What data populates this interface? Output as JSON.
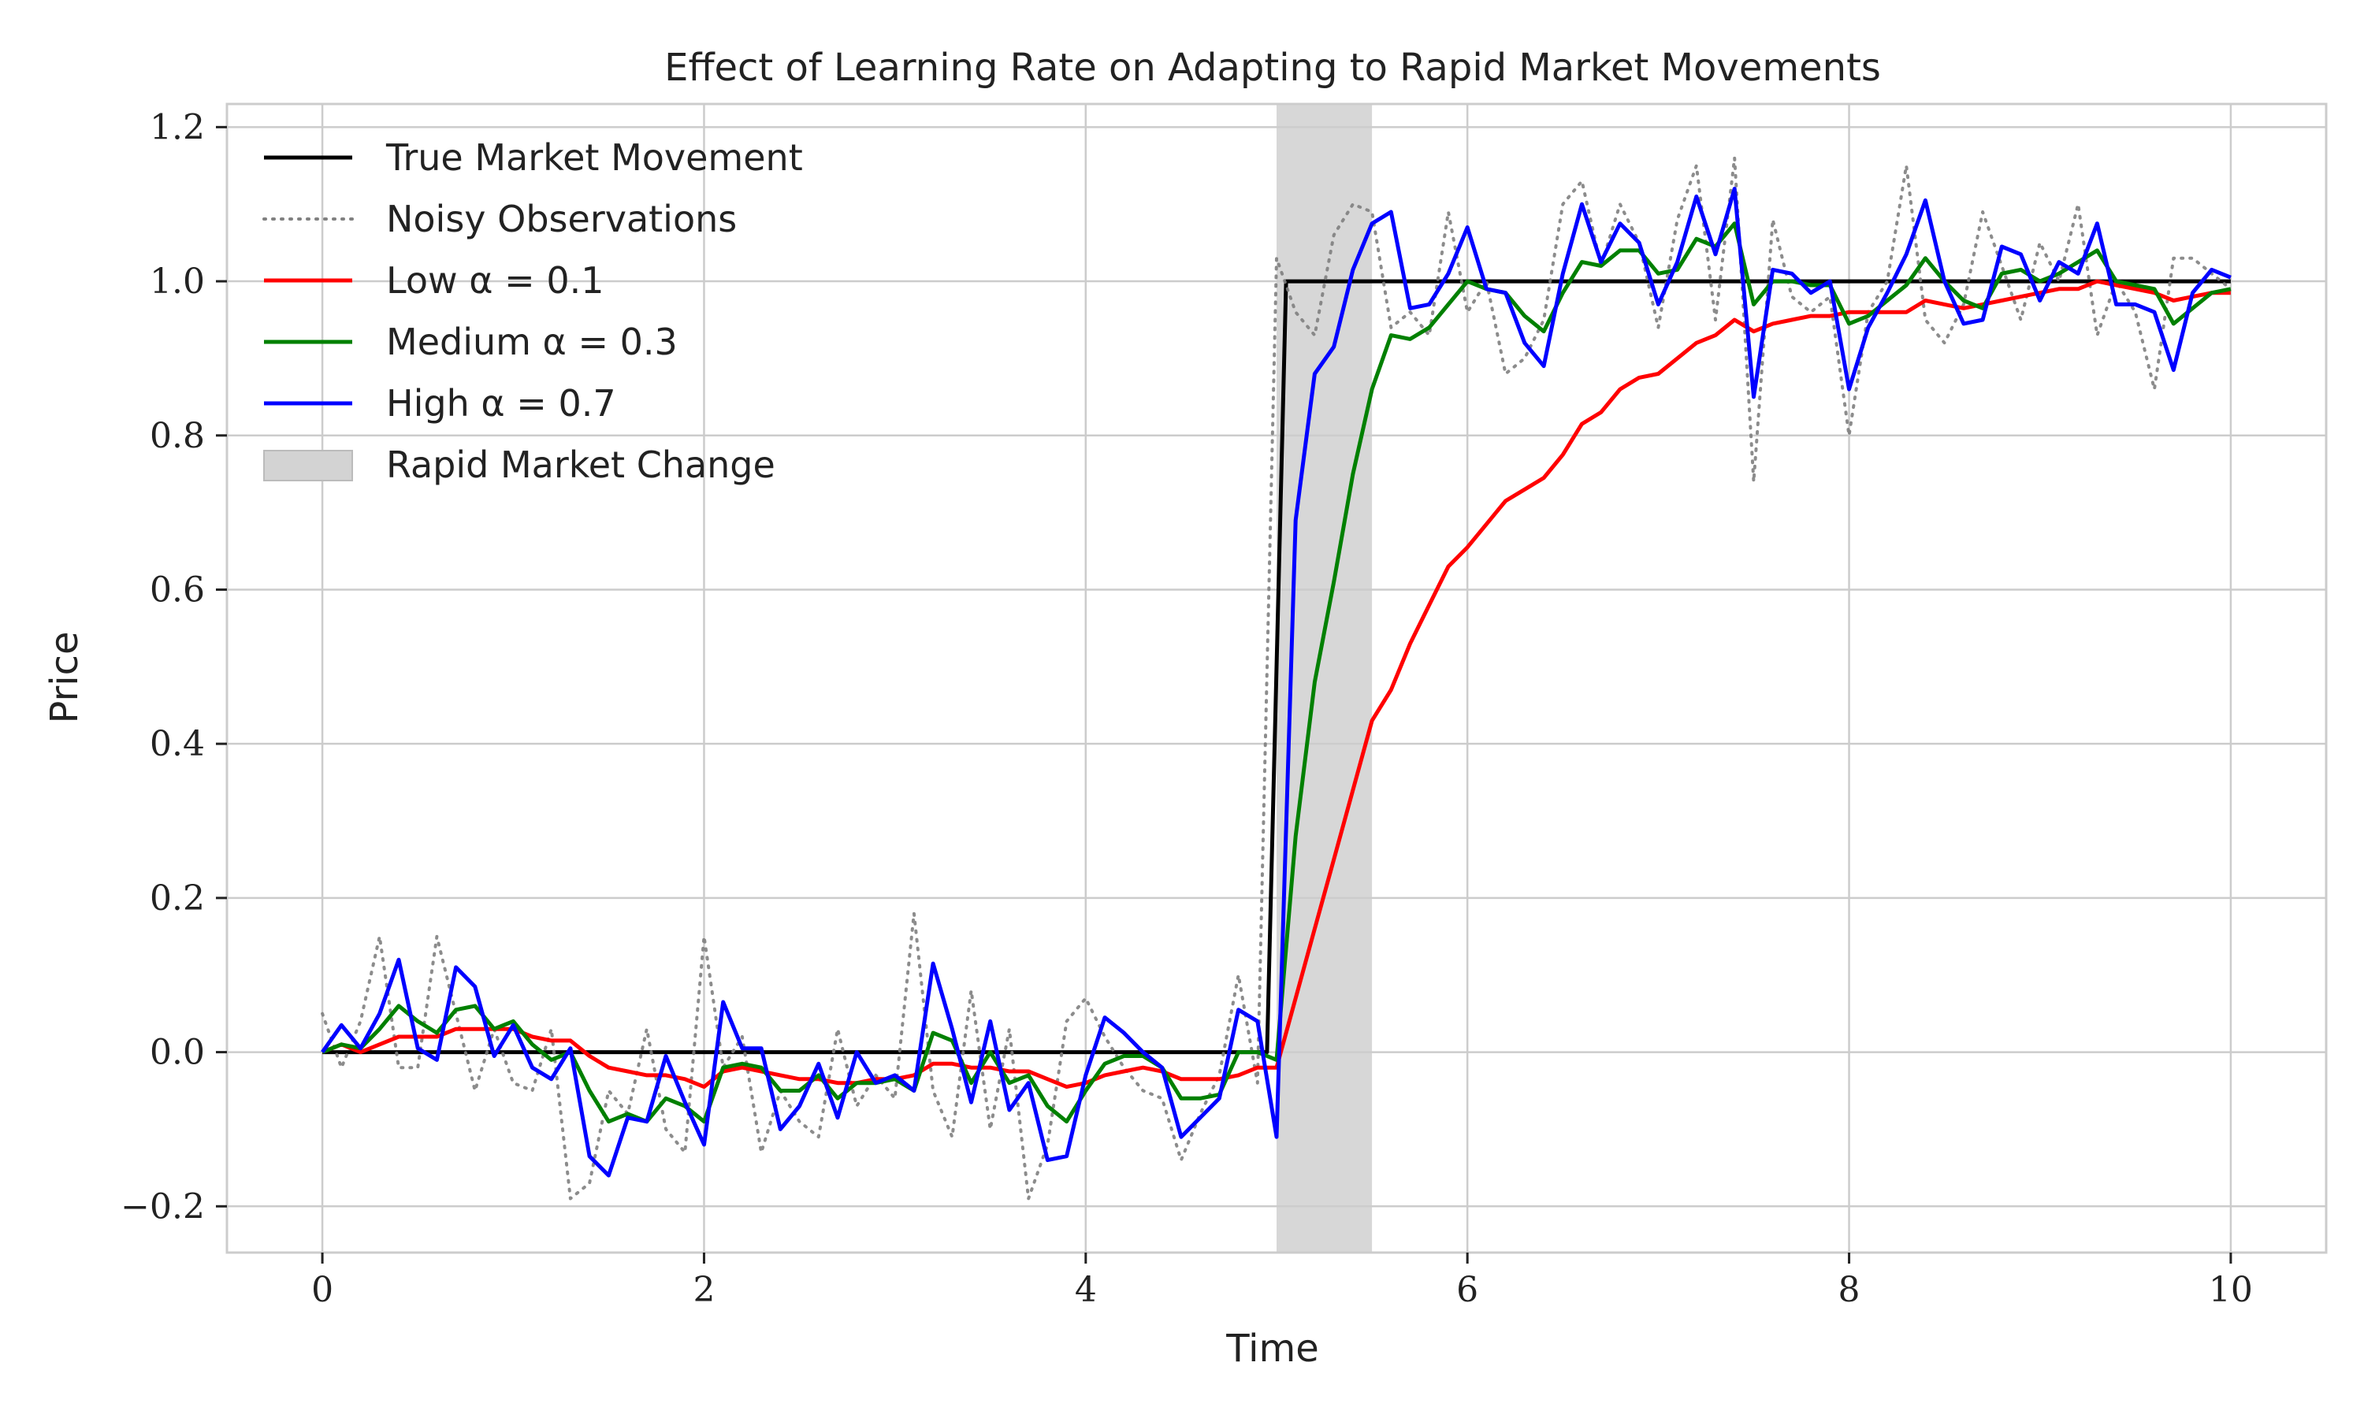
{
  "chart_data": {
    "type": "line",
    "title": "Effect of Learning Rate on Adapting to Rapid Market Movements",
    "xlabel": "Time",
    "ylabel": "Price",
    "xlim": [
      -0.5,
      10.5
    ],
    "ylim": [
      -0.26,
      1.23
    ],
    "xticks": [
      0,
      2,
      4,
      6,
      8,
      10
    ],
    "xtick_labels": [
      "0",
      "2",
      "4",
      "6",
      "8",
      "10"
    ],
    "yticks": [
      -0.2,
      0.0,
      0.2,
      0.4,
      0.6,
      0.8,
      1.0,
      1.2
    ],
    "ytick_labels": [
      "−0.2",
      "0.0",
      "0.2",
      "0.4",
      "0.6",
      "0.8",
      "1.0",
      "1.2"
    ],
    "grid": true,
    "legend_position": "top-left",
    "shaded_region": {
      "name": "Rapid Market Change",
      "x_start": 5.0,
      "x_end": 5.5,
      "color": "#d3d3d3"
    },
    "series": [
      {
        "name": "True Market Movement",
        "color": "#000000",
        "style": "solid",
        "x": [
          0,
          4.95,
          5.05,
          10
        ],
        "y": [
          0,
          0,
          1.0,
          1.0
        ]
      },
      {
        "name": "Noisy Observations",
        "color": "#808080",
        "style": "dotted",
        "x": [
          0,
          0.1,
          0.2,
          0.3,
          0.4,
          0.5,
          0.6,
          0.7,
          0.8,
          0.9,
          1.0,
          1.1,
          1.2,
          1.3,
          1.4,
          1.5,
          1.6,
          1.7,
          1.8,
          1.9,
          2.0,
          2.1,
          2.2,
          2.3,
          2.4,
          2.5,
          2.6,
          2.7,
          2.8,
          2.9,
          3.0,
          3.1,
          3.2,
          3.3,
          3.4,
          3.5,
          3.6,
          3.7,
          3.8,
          3.9,
          4.0,
          4.1,
          4.2,
          4.3,
          4.4,
          4.5,
          4.6,
          4.7,
          4.8,
          4.9,
          5.0,
          5.1,
          5.2,
          5.3,
          5.4,
          5.5,
          5.6,
          5.7,
          5.8,
          5.9,
          6.0,
          6.1,
          6.2,
          6.3,
          6.4,
          6.5,
          6.6,
          6.7,
          6.8,
          6.9,
          7.0,
          7.1,
          7.2,
          7.3,
          7.4,
          7.5,
          7.6,
          7.7,
          7.8,
          7.9,
          8.0,
          8.1,
          8.2,
          8.3,
          8.4,
          8.5,
          8.6,
          8.7,
          8.8,
          8.9,
          9.0,
          9.1,
          9.2,
          9.3,
          9.4,
          9.5,
          9.6,
          9.7,
          9.8,
          9.9,
          10.0
        ],
        "y": [
          0.05,
          -0.02,
          0.04,
          0.15,
          -0.02,
          -0.02,
          0.15,
          0.05,
          -0.05,
          0.03,
          -0.04,
          -0.05,
          0.03,
          -0.19,
          -0.17,
          -0.05,
          -0.08,
          0.03,
          -0.1,
          -0.13,
          0.15,
          -0.02,
          0.02,
          -0.13,
          -0.05,
          -0.09,
          -0.11,
          0.03,
          -0.07,
          -0.03,
          -0.06,
          0.18,
          -0.05,
          -0.11,
          0.08,
          -0.1,
          0.03,
          -0.19,
          -0.12,
          0.04,
          0.07,
          0.02,
          -0.02,
          -0.05,
          -0.06,
          -0.14,
          -0.08,
          -0.03,
          0.1,
          -0.04,
          1.03,
          0.96,
          0.93,
          1.06,
          1.1,
          1.09,
          0.94,
          0.96,
          0.93,
          1.09,
          0.96,
          1.0,
          0.88,
          0.9,
          0.95,
          1.1,
          1.13,
          1.02,
          1.1,
          1.05,
          0.94,
          1.08,
          1.15,
          0.95,
          1.16,
          0.74,
          1.08,
          0.98,
          0.96,
          0.98,
          0.8,
          0.96,
          1.0,
          1.15,
          0.95,
          0.92,
          0.97,
          1.09,
          1.02,
          0.95,
          1.05,
          1.0,
          1.1,
          0.93,
          1.0,
          0.96,
          0.86,
          1.03,
          1.03,
          1.01,
          0.99
        ]
      },
      {
        "name": "Low α = 0.1",
        "color": "#ff0000",
        "style": "solid",
        "x": [
          0,
          0.1,
          0.2,
          0.3,
          0.4,
          0.5,
          0.6,
          0.7,
          0.8,
          0.9,
          1.0,
          1.1,
          1.2,
          1.3,
          1.4,
          1.5,
          1.6,
          1.7,
          1.8,
          1.9,
          2.0,
          2.1,
          2.2,
          2.3,
          2.4,
          2.5,
          2.6,
          2.7,
          2.8,
          2.9,
          3.0,
          3.1,
          3.2,
          3.3,
          3.4,
          3.5,
          3.6,
          3.7,
          3.8,
          3.9,
          4.0,
          4.1,
          4.2,
          4.3,
          4.4,
          4.5,
          4.6,
          4.7,
          4.8,
          4.9,
          5.0,
          5.1,
          5.2,
          5.3,
          5.4,
          5.5,
          5.6,
          5.7,
          5.8,
          5.9,
          6.0,
          6.1,
          6.2,
          6.3,
          6.4,
          6.5,
          6.6,
          6.7,
          6.8,
          6.9,
          7.0,
          7.1,
          7.2,
          7.3,
          7.4,
          7.5,
          7.6,
          7.7,
          7.8,
          7.9,
          8.0,
          8.1,
          8.2,
          8.3,
          8.4,
          8.5,
          8.6,
          8.7,
          8.8,
          8.9,
          9.0,
          9.1,
          9.2,
          9.3,
          9.4,
          9.5,
          9.6,
          9.7,
          9.8,
          9.9,
          10.0
        ],
        "y": [
          0.0,
          0.01,
          0.0,
          0.01,
          0.02,
          0.02,
          0.02,
          0.03,
          0.03,
          0.03,
          0.03,
          0.02,
          0.015,
          0.015,
          -0.005,
          -0.02,
          -0.025,
          -0.03,
          -0.03,
          -0.035,
          -0.045,
          -0.025,
          -0.02,
          -0.025,
          -0.03,
          -0.035,
          -0.035,
          -0.04,
          -0.04,
          -0.035,
          -0.035,
          -0.03,
          -0.015,
          -0.015,
          -0.02,
          -0.02,
          -0.025,
          -0.025,
          -0.035,
          -0.045,
          -0.04,
          -0.03,
          -0.025,
          -0.02,
          -0.025,
          -0.035,
          -0.035,
          -0.035,
          -0.03,
          -0.02,
          -0.02,
          0.07,
          0.16,
          0.25,
          0.34,
          0.43,
          0.47,
          0.53,
          0.58,
          0.63,
          0.655,
          0.685,
          0.715,
          0.73,
          0.745,
          0.775,
          0.815,
          0.83,
          0.86,
          0.875,
          0.88,
          0.9,
          0.92,
          0.93,
          0.95,
          0.935,
          0.945,
          0.95,
          0.955,
          0.955,
          0.96,
          0.96,
          0.96,
          0.96,
          0.975,
          0.97,
          0.965,
          0.97,
          0.975,
          0.98,
          0.985,
          0.99,
          0.99,
          1.0,
          0.995,
          0.99,
          0.985,
          0.975,
          0.98,
          0.985,
          0.985
        ]
      },
      {
        "name": "Medium α = 0.3",
        "color": "#008000",
        "style": "solid",
        "x": [
          0,
          0.1,
          0.2,
          0.3,
          0.4,
          0.5,
          0.6,
          0.7,
          0.8,
          0.9,
          1.0,
          1.1,
          1.2,
          1.3,
          1.4,
          1.5,
          1.6,
          1.7,
          1.8,
          1.9,
          2.0,
          2.1,
          2.2,
          2.3,
          2.4,
          2.5,
          2.6,
          2.7,
          2.8,
          2.9,
          3.0,
          3.1,
          3.2,
          3.3,
          3.4,
          3.5,
          3.6,
          3.7,
          3.8,
          3.9,
          4.0,
          4.1,
          4.2,
          4.3,
          4.4,
          4.5,
          4.6,
          4.7,
          4.8,
          4.9,
          5.0,
          5.1,
          5.2,
          5.3,
          5.4,
          5.5,
          5.6,
          5.7,
          5.8,
          5.9,
          6.0,
          6.1,
          6.2,
          6.3,
          6.4,
          6.5,
          6.6,
          6.7,
          6.8,
          6.9,
          7.0,
          7.1,
          7.2,
          7.3,
          7.4,
          7.5,
          7.6,
          7.7,
          7.8,
          7.9,
          8.0,
          8.1,
          8.2,
          8.3,
          8.4,
          8.5,
          8.6,
          8.7,
          8.8,
          8.9,
          9.0,
          9.1,
          9.2,
          9.3,
          9.4,
          9.5,
          9.6,
          9.7,
          9.8,
          9.9,
          10.0
        ],
        "y": [
          0.0,
          0.01,
          0.005,
          0.03,
          0.06,
          0.04,
          0.025,
          0.055,
          0.06,
          0.03,
          0.04,
          0.01,
          -0.01,
          0.0,
          -0.05,
          -0.09,
          -0.08,
          -0.09,
          -0.06,
          -0.07,
          -0.09,
          -0.02,
          -0.015,
          -0.02,
          -0.05,
          -0.05,
          -0.03,
          -0.06,
          -0.04,
          -0.04,
          -0.035,
          -0.05,
          0.025,
          0.015,
          -0.04,
          0.0,
          -0.04,
          -0.03,
          -0.07,
          -0.09,
          -0.05,
          -0.015,
          -0.005,
          -0.005,
          -0.02,
          -0.06,
          -0.06,
          -0.055,
          0.0,
          0.0,
          -0.01,
          0.28,
          0.48,
          0.61,
          0.75,
          0.86,
          0.93,
          0.925,
          0.94,
          0.97,
          1.0,
          0.99,
          0.985,
          0.955,
          0.935,
          0.985,
          1.025,
          1.02,
          1.04,
          1.04,
          1.01,
          1.015,
          1.055,
          1.045,
          1.075,
          0.97,
          1.0,
          1.0,
          0.995,
          0.995,
          0.945,
          0.955,
          0.975,
          0.995,
          1.03,
          1.0,
          0.975,
          0.965,
          1.01,
          1.015,
          1.0,
          1.01,
          1.025,
          1.04,
          1.0,
          0.995,
          0.99,
          0.945,
          0.965,
          0.985,
          0.99
        ]
      },
      {
        "name": "High α = 0.7",
        "color": "#0000ff",
        "style": "solid",
        "x": [
          0,
          0.1,
          0.2,
          0.3,
          0.4,
          0.5,
          0.6,
          0.7,
          0.8,
          0.9,
          1.0,
          1.1,
          1.2,
          1.3,
          1.4,
          1.5,
          1.6,
          1.7,
          1.8,
          1.9,
          2.0,
          2.1,
          2.2,
          2.3,
          2.4,
          2.5,
          2.6,
          2.7,
          2.8,
          2.9,
          3.0,
          3.1,
          3.2,
          3.3,
          3.4,
          3.5,
          3.6,
          3.7,
          3.8,
          3.9,
          4.0,
          4.1,
          4.2,
          4.3,
          4.4,
          4.5,
          4.6,
          4.7,
          4.8,
          4.9,
          5.0,
          5.1,
          5.2,
          5.3,
          5.4,
          5.5,
          5.6,
          5.7,
          5.8,
          5.9,
          6.0,
          6.1,
          6.2,
          6.3,
          6.4,
          6.5,
          6.6,
          6.7,
          6.8,
          6.9,
          7.0,
          7.1,
          7.2,
          7.3,
          7.4,
          7.5,
          7.6,
          7.7,
          7.8,
          7.9,
          8.0,
          8.1,
          8.2,
          8.3,
          8.4,
          8.5,
          8.6,
          8.7,
          8.8,
          8.9,
          9.0,
          9.1,
          9.2,
          9.3,
          9.4,
          9.5,
          9.6,
          9.7,
          9.8,
          9.9,
          10.0
        ],
        "y": [
          0.0,
          0.035,
          0.005,
          0.05,
          0.12,
          0.005,
          -0.01,
          0.11,
          0.085,
          -0.005,
          0.035,
          -0.02,
          -0.035,
          0.005,
          -0.135,
          -0.16,
          -0.085,
          -0.09,
          -0.005,
          -0.065,
          -0.12,
          0.065,
          0.005,
          0.005,
          -0.1,
          -0.07,
          -0.015,
          -0.085,
          0.0,
          -0.04,
          -0.03,
          -0.05,
          0.115,
          0.03,
          -0.065,
          0.04,
          -0.075,
          -0.04,
          -0.14,
          -0.135,
          -0.03,
          0.045,
          0.025,
          0.0,
          -0.02,
          -0.11,
          -0.085,
          -0.06,
          0.055,
          0.04,
          -0.11,
          0.69,
          0.88,
          0.915,
          1.015,
          1.075,
          1.09,
          0.965,
          0.97,
          1.01,
          1.07,
          0.99,
          0.985,
          0.92,
          0.89,
          1.01,
          1.1,
          1.025,
          1.075,
          1.05,
          0.97,
          1.025,
          1.11,
          1.035,
          1.12,
          0.85,
          1.015,
          1.01,
          0.985,
          1.0,
          0.86,
          0.94,
          0.985,
          1.035,
          1.105,
          1.0,
          0.945,
          0.95,
          1.045,
          1.035,
          0.975,
          1.025,
          1.01,
          1.075,
          0.97,
          0.97,
          0.96,
          0.885,
          0.985,
          1.015,
          1.005
        ]
      }
    ]
  }
}
